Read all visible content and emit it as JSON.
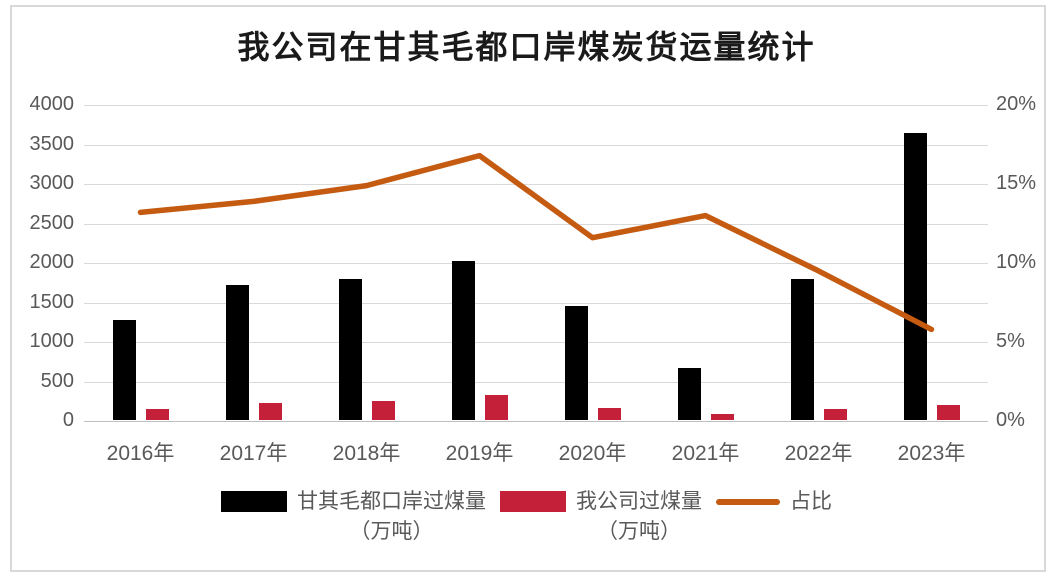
{
  "title": "我公司在甘其毛都口岸煤炭货运量统计",
  "colors": {
    "port_bar": "#000000",
    "company_bar": "#C5203A",
    "ratio_line": "#C55A11",
    "grid": "#D9D9D9",
    "axis_text": "#595959",
    "frame": "#D9D9D9",
    "title_text": "#1a1a1a"
  },
  "chart_data": {
    "type": "bar",
    "subtype": "combo-bar-line-dual-axis",
    "title": "我公司在甘其毛都口岸煤炭货运量统计",
    "categories": [
      "2016年",
      "2017年",
      "2018年",
      "2019年",
      "2020年",
      "2021年",
      "2022年",
      "2023年"
    ],
    "series": [
      {
        "name": "甘其毛都口岸过煤量（万吨）",
        "type": "bar",
        "axis": "left",
        "color_key": "port_bar",
        "values": [
          1280,
          1720,
          1800,
          2030,
          1460,
          675,
          1795,
          3640
        ]
      },
      {
        "name": "我公司过煤量（万吨）",
        "type": "bar",
        "axis": "left",
        "color_key": "company_bar",
        "values": [
          155,
          230,
          250,
          330,
          165,
          85,
          155,
          205
        ]
      },
      {
        "name": "占比",
        "type": "line",
        "axis": "right",
        "color_key": "ratio_line",
        "values": [
          13.2,
          13.9,
          14.9,
          16.8,
          11.6,
          13.0,
          9.5,
          5.8
        ]
      }
    ],
    "left_axis": {
      "min": 0,
      "max": 4000,
      "step": 500,
      "ticks": [
        "0",
        "500",
        "1000",
        "1500",
        "2000",
        "2500",
        "3000",
        "3500",
        "4000"
      ]
    },
    "right_axis": {
      "min": 0,
      "max": 20,
      "label_step": 5,
      "ticks": [
        "0%",
        "5%",
        "10%",
        "15%",
        "20%"
      ]
    },
    "grid": true,
    "legend_position": "bottom",
    "xlabel": "",
    "ylabel": ""
  },
  "legend": {
    "items": [
      {
        "label": "甘其毛都口岸过煤量\n（万吨）",
        "swatch": "bar",
        "color_key": "port_bar"
      },
      {
        "label": "我公司过煤量\n（万吨）",
        "swatch": "bar",
        "color_key": "company_bar"
      },
      {
        "label": "占比",
        "swatch": "line",
        "color_key": "ratio_line"
      }
    ]
  }
}
